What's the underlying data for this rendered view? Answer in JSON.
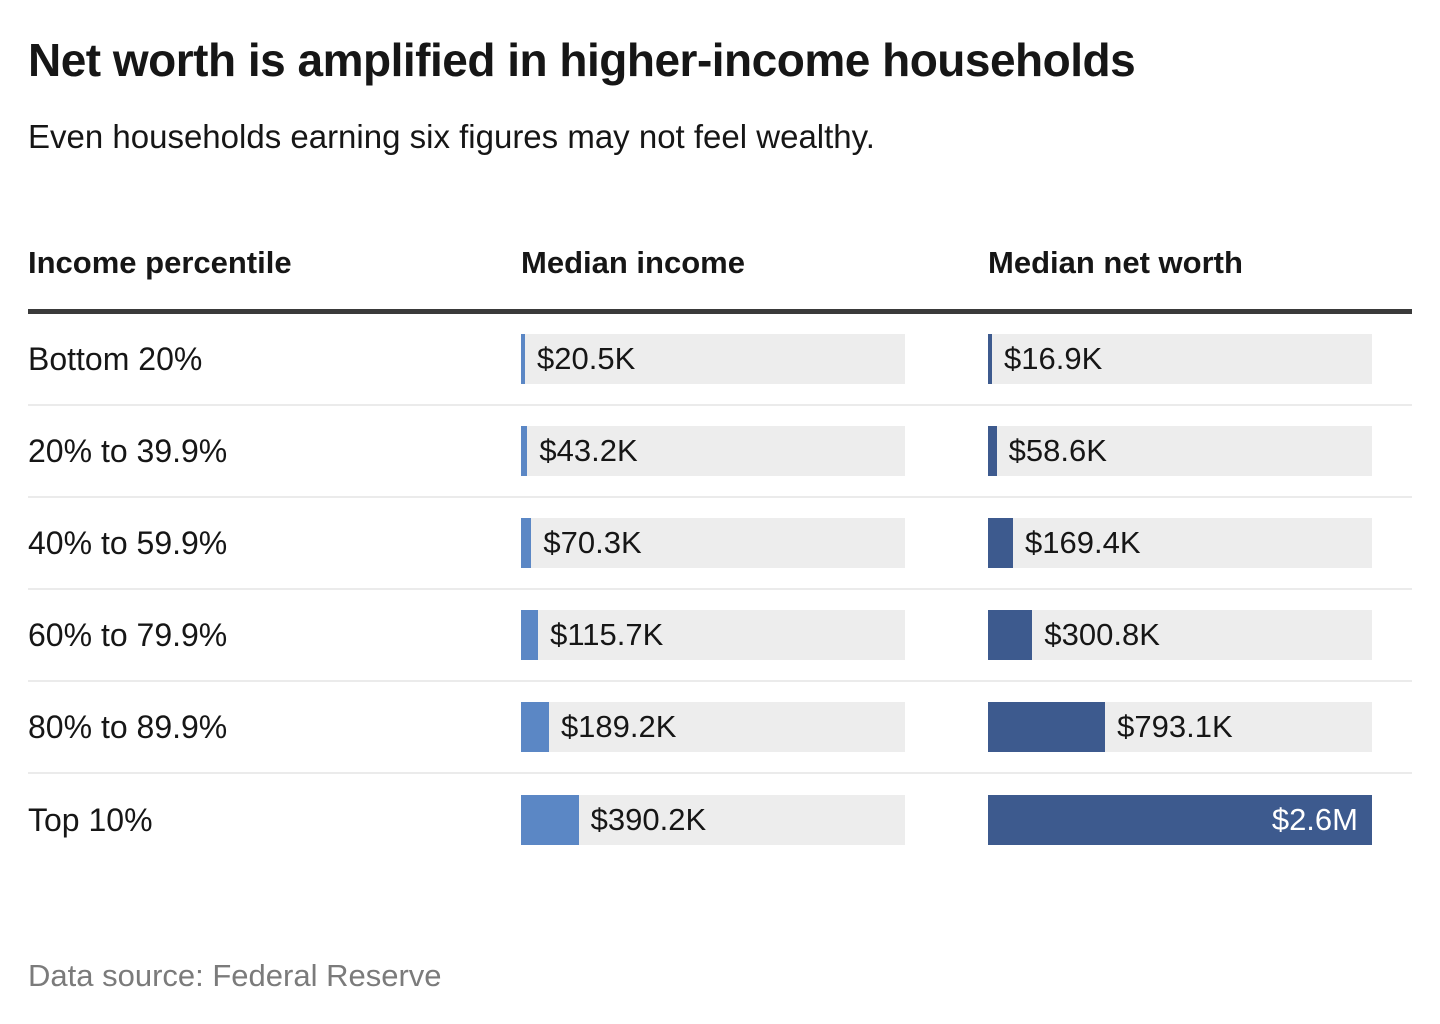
{
  "title": "Net worth is amplified in higher-income households",
  "subtitle": "Even households earning six figures may not feel wealthy.",
  "source": "Data source: Federal Reserve",
  "table": {
    "headers": {
      "percentile": "Income percentile",
      "income": "Median income",
      "net_worth": "Median net worth"
    }
  },
  "colors": {
    "income_bar": "#5b87c5",
    "net_worth_bar": "#3d5a8e",
    "bar_track": "#ededed",
    "header_rule": "#3a3a3a",
    "row_divider": "#ebebeb",
    "text_primary": "#161616",
    "inside_bar_label": "#ffffff",
    "source_text": "#7b7b7b"
  },
  "chart_data": {
    "type": "bar",
    "orientation": "horizontal",
    "title": "Net worth is amplified in higher-income households",
    "subtitle": "Even households earning six figures may not feel wealthy.",
    "source": "Data source: Federal Reserve",
    "categories": [
      "Bottom 20%",
      "20% to 39.9%",
      "40% to 59.9%",
      "60% to 79.9%",
      "80% to 89.9%",
      "Top 10%"
    ],
    "series": [
      {
        "name": "Median income",
        "unit": "USD",
        "values": [
          20500,
          43200,
          70300,
          115700,
          189200,
          390200
        ],
        "labels": [
          "$20.5K",
          "$43.2K",
          "$70.3K",
          "$115.7K",
          "$189.2K",
          "$390.2K"
        ]
      },
      {
        "name": "Median net worth",
        "unit": "USD",
        "values": [
          16900,
          58600,
          169400,
          300800,
          793100,
          2600000
        ],
        "labels": [
          "$16.9K",
          "$58.6K",
          "$169.4K",
          "$300.8K",
          "$793.1K",
          "$2.6M"
        ]
      }
    ],
    "xlim": [
      0,
      2600000
    ],
    "grid": false,
    "legend": "none"
  }
}
